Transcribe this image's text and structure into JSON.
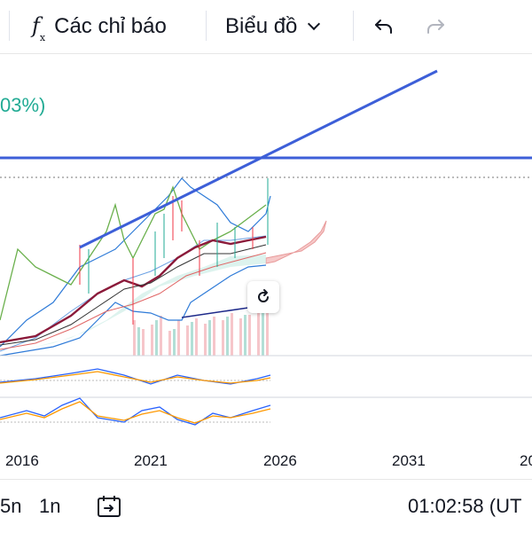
{
  "toolbar": {
    "indicators_label": "Các chỉ báo",
    "chart_type_label": "Biểu đồ",
    "indicators_icon": "function-fx-icon",
    "dropdown_icon": "chevron-down-icon",
    "undo_icon": "undo-icon",
    "redo_icon": "redo-icon"
  },
  "chart": {
    "change_label": "03%)",
    "reset_icon": "reset-rotate-icon",
    "colors": {
      "trendline": "#3d5fd8",
      "up": "#22ab94",
      "down": "#f23645",
      "ma_long": "#8b1a3a",
      "bollinger": "#2962ff",
      "cloud": "#b2e0d8"
    }
  },
  "x_axis": {
    "ticks": [
      "2016",
      "2021",
      "2026",
      "2031",
      "20"
    ]
  },
  "bottom_bar": {
    "interval_5y": "5n",
    "interval_1y": "1n",
    "goto_icon": "calendar-goto-icon",
    "clock": "01:02:58 (UT"
  }
}
